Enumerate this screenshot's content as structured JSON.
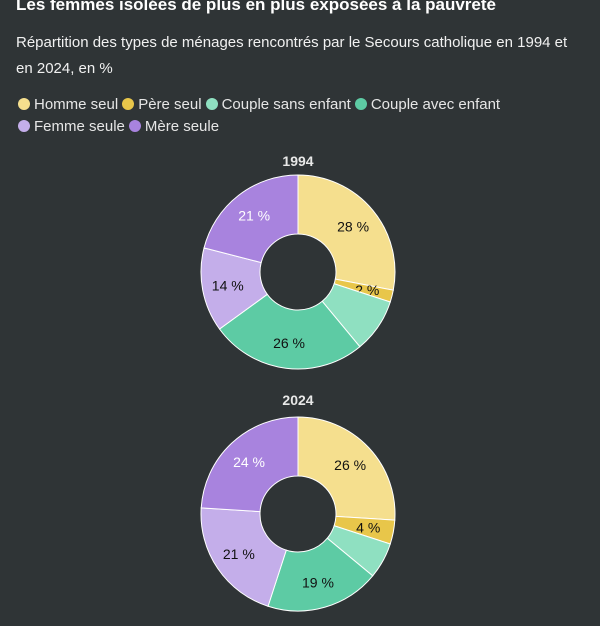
{
  "header": {
    "title": "Les femmes isolées de plus en plus exposées à la pauvreté",
    "subtitle": "Répartition des types de ménages rencontrés par le Secours catholique en 1994 et en 2024, en %"
  },
  "legend": [
    {
      "label": "Homme seul",
      "color": "#f5df8e"
    },
    {
      "label": "Père seul",
      "color": "#e8c64a"
    },
    {
      "label": "Couple sans enfant",
      "color": "#8fe0c1"
    },
    {
      "label": "Couple avec enfant",
      "color": "#5dcba4"
    },
    {
      "label": "Femme seule",
      "color": "#c4aeea"
    },
    {
      "label": "Mère seule",
      "color": "#a883de"
    }
  ],
  "chart_data": [
    {
      "type": "pie",
      "title": "1994",
      "categories": [
        "Homme seul",
        "Père seul",
        "Couple sans enfant",
        "Couple avec enfant",
        "Femme seule",
        "Mère seule"
      ],
      "values": [
        28,
        2,
        9,
        26,
        14,
        21
      ],
      "labels": [
        "28 %",
        "2 %",
        "",
        "26 %",
        "14 %",
        "21 %"
      ]
    },
    {
      "type": "pie",
      "title": "2024",
      "categories": [
        "Homme seul",
        "Père seul",
        "Couple sans enfant",
        "Couple avec enfant",
        "Femme seule",
        "Mère seule"
      ],
      "values": [
        26,
        4,
        6,
        19,
        21,
        24
      ],
      "labels": [
        "26 %",
        "4 %",
        "",
        "19 %",
        "21 %",
        "24 %"
      ]
    }
  ]
}
